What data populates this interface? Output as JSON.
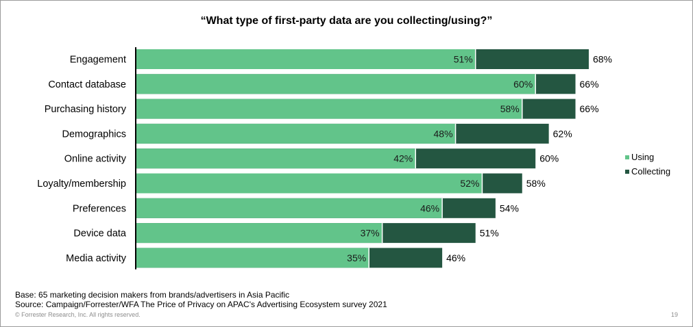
{
  "title": "“What type of first-party data are you collecting/using?”",
  "footer": {
    "base": "Base: 65 marketing decision makers from brands/advertisers in Asia Pacific",
    "source": "Source: Campaign/Forrester/WFA The Price of Privacy on APAC's Advertising Ecosystem survey 2021",
    "copyright": "© Forrester Research, Inc. All rights reserved.",
    "page_number": "19"
  },
  "colors": {
    "using": "#62c48a",
    "collecting": "#245641"
  },
  "chart_data": {
    "type": "bar",
    "orientation": "horizontal",
    "title": "“What type of first-party data are you collecting/using?”",
    "categories": [
      "Engagement",
      "Contact database",
      "Purchasing history",
      "Demographics",
      "Online activity",
      "Loyalty/membership",
      "Preferences",
      "Device data",
      "Media activity"
    ],
    "series": [
      {
        "name": "Using",
        "values": [
          51,
          60,
          58,
          48,
          42,
          52,
          46,
          37,
          35
        ],
        "labels": [
          "51%",
          "60%",
          "58%",
          "48%",
          "42%",
          "52%",
          "46%",
          "37%",
          "35%"
        ]
      },
      {
        "name": "Collecting",
        "values": [
          68,
          66,
          66,
          62,
          60,
          58,
          54,
          51,
          46
        ],
        "labels": [
          "68%",
          "66%",
          "66%",
          "62%",
          "60%",
          "58%",
          "54%",
          "51%",
          "46%"
        ]
      }
    ],
    "xlim": [
      0,
      100
    ],
    "unit": "%",
    "legend_position": "right",
    "grid": false
  }
}
